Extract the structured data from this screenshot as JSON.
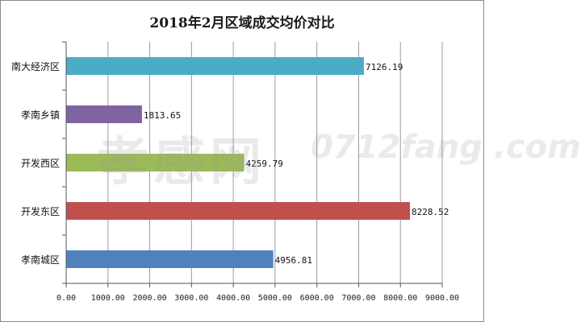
{
  "chart_data": {
    "type": "bar",
    "orientation": "horizontal",
    "title": "2018年2月区域成交均价对比",
    "categories": [
      "南大经济区",
      "孝南乡镇",
      "开发西区",
      "开发东区",
      "孝南城区"
    ],
    "values": [
      7126.19,
      1813.65,
      4259.79,
      8228.52,
      4956.81
    ],
    "value_labels": [
      "7126.19",
      "1813.65",
      "4259.79",
      "8228.52",
      "4956.81"
    ],
    "colors": [
      "#4bacc6",
      "#8064a2",
      "#9bbb59",
      "#c0504d",
      "#4f81bd"
    ],
    "xlim": [
      0,
      9000
    ],
    "x_ticks": [
      0,
      1000,
      2000,
      3000,
      4000,
      5000,
      6000,
      7000,
      8000,
      9000
    ],
    "x_tick_labels": [
      "0.00",
      "1000.00",
      "2000.00",
      "3000.00",
      "4000.00",
      "5000.00",
      "6000.00",
      "7000.00",
      "8000.00",
      "9000.00"
    ],
    "grid": true,
    "xlabel": "",
    "ylabel": ""
  },
  "watermark": {
    "text": "孝感网",
    "sub": "0712fang .com"
  }
}
